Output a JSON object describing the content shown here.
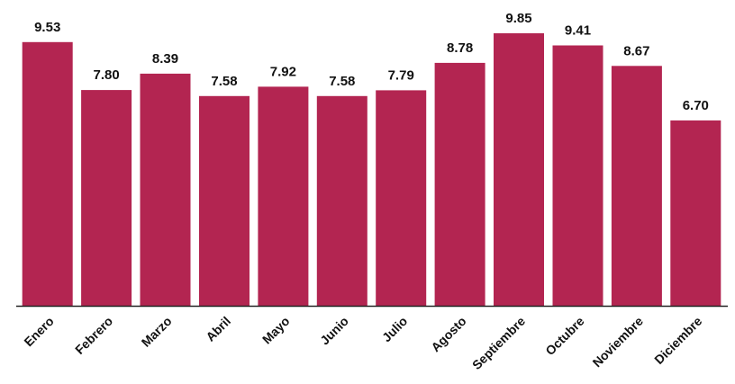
{
  "chart_data": {
    "type": "bar",
    "categories": [
      "Enero",
      "Febrero",
      "Marzo",
      "Abril",
      "Mayo",
      "Junio",
      "Julio",
      "Agosto",
      "Septiembre",
      "Octubre",
      "Noviembre",
      "Diciembre"
    ],
    "values": [
      9.53,
      7.8,
      8.39,
      7.58,
      7.92,
      7.58,
      7.79,
      8.78,
      9.85,
      9.41,
      8.67,
      6.7
    ],
    "value_labels": [
      "9.53",
      "7.80",
      "8.39",
      "7.58",
      "7.92",
      "7.58",
      "7.79",
      "8.78",
      "9.85",
      "9.41",
      "8.67",
      "6.70"
    ],
    "title": "",
    "xlabel": "",
    "ylabel": "",
    "ylim": [
      0,
      10.8
    ],
    "grid": false,
    "legend": "none",
    "bar_color": "#B32551",
    "axis_color": "#222222"
  }
}
